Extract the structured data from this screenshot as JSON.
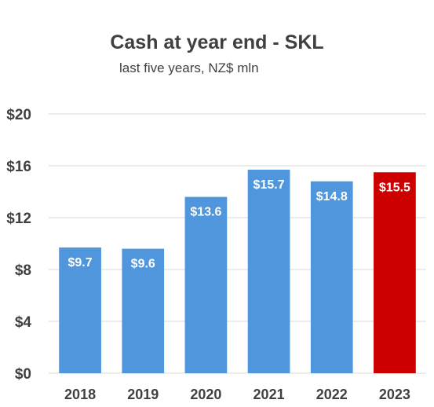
{
  "chart_data": {
    "type": "bar",
    "title": "Cash at year end - SKL",
    "subtitle": "last five years, NZ$ mln",
    "categories": [
      "2018",
      "2019",
      "2020",
      "2021",
      "2022",
      "2023"
    ],
    "values": [
      9.7,
      9.6,
      13.6,
      15.7,
      14.8,
      15.5
    ],
    "data_labels": [
      "$9.7",
      "$9.6",
      "$13.6",
      "$15.7",
      "$14.8",
      "$15.5"
    ],
    "ylim": [
      0,
      20
    ],
    "yticks": [
      0,
      4,
      8,
      12,
      16,
      20
    ],
    "ytick_labels": [
      "$0",
      "$4",
      "$8",
      "$12",
      "$16",
      "$20"
    ],
    "xlabel": "",
    "ylabel": "",
    "grid": true,
    "colors": {
      "bar": "#4F96DC",
      "highlight": "#CC0000",
      "grid": "#D9D9D9",
      "text": "#404040"
    },
    "highlight_index": 5
  }
}
